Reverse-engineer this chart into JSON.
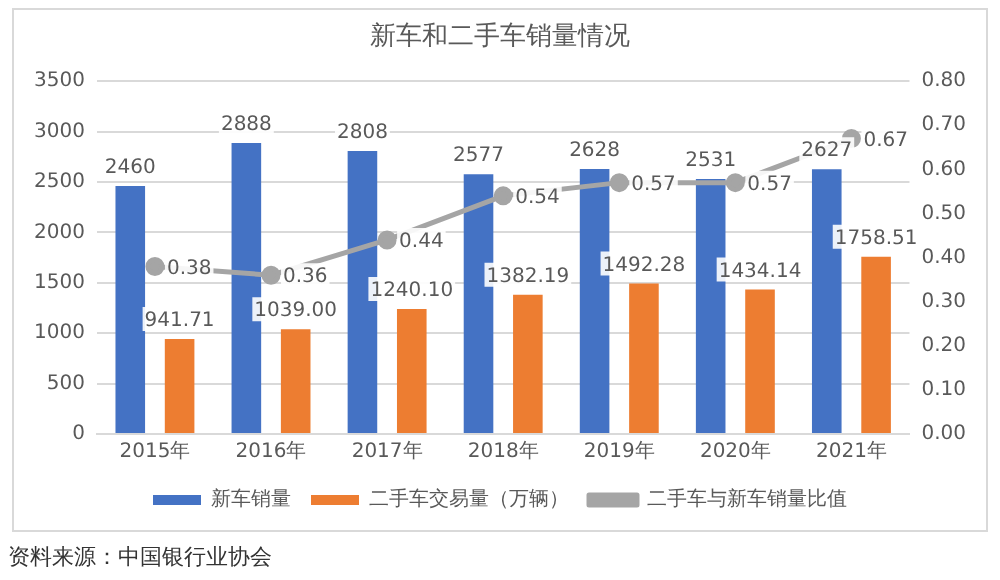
{
  "chart_data": {
    "type": "bar",
    "title": "新车和二手车销量情况",
    "categories": [
      "2015年",
      "2016年",
      "2017年",
      "2018年",
      "2019年",
      "2020年",
      "2021年"
    ],
    "series": [
      {
        "name": "新车销量",
        "color": "#4472c4",
        "values": [
          2460,
          2888,
          2808,
          2577,
          2628,
          2531,
          2627
        ],
        "value_labels": [
          "2460",
          "2888",
          "2808",
          "2577",
          "2628",
          "2531",
          "2627"
        ]
      },
      {
        "name": "二手车交易量（万辆）",
        "color": "#ed7d31",
        "values": [
          941.71,
          1039.0,
          1240.1,
          1382.19,
          1492.28,
          1434.14,
          1758.51
        ],
        "value_labels": [
          "941.71",
          "1039.00",
          "1240.10",
          "1382.19",
          "1492.28",
          "1434.14",
          "1758.51"
        ]
      },
      {
        "name": "二手车与新车销量比值",
        "type": "line",
        "axis": "y2",
        "color": "#a5a5a5",
        "marker": "circle",
        "values": [
          0.38,
          0.36,
          0.44,
          0.54,
          0.57,
          0.57,
          0.67
        ],
        "value_labels": [
          "0.38",
          "0.36",
          "0.44",
          "0.54",
          "0.57",
          "0.57",
          "0.67"
        ]
      }
    ],
    "ylim": [
      0,
      3500
    ],
    "yticks": [
      0,
      500,
      1000,
      1500,
      2000,
      2500,
      3000,
      3500
    ],
    "y2lim": [
      0,
      0.8
    ],
    "y2ticks": [
      {
        "value": 0,
        "label": "0.00"
      },
      {
        "value": 0.1,
        "label": "0.10"
      },
      {
        "value": 0.2,
        "label": "0.20"
      },
      {
        "value": 0.3,
        "label": "0.30"
      },
      {
        "value": 0.4,
        "label": "0.40"
      },
      {
        "value": 0.5,
        "label": "0.50"
      },
      {
        "value": 0.6,
        "label": "0.60"
      },
      {
        "value": 0.7,
        "label": "0.70"
      },
      {
        "value": 0.8,
        "label": "0.80"
      }
    ],
    "grid": "y",
    "legend": "bottom",
    "annotations": [
      "资料来源：中国银行业协会"
    ]
  }
}
